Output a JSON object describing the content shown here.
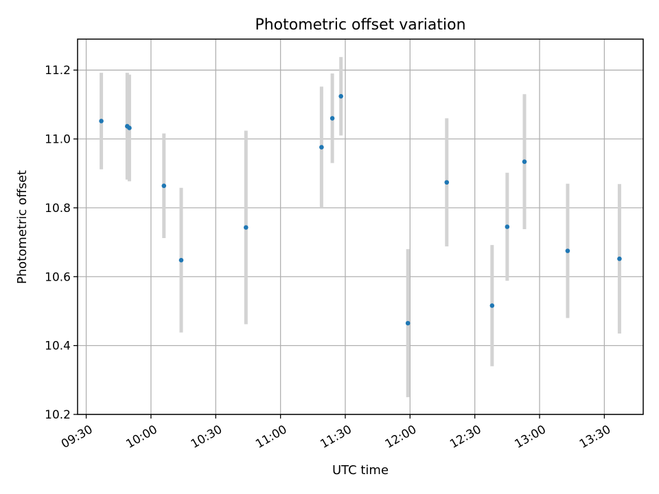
{
  "chart_data": {
    "type": "scatter",
    "title": "Photometric offset variation",
    "xlabel": "UTC time",
    "ylabel": "Photometric offset",
    "xlim": [
      "09:26",
      "13:48"
    ],
    "ylim": [
      10.2,
      11.29
    ],
    "x_ticks": [
      "09:30",
      "10:00",
      "10:30",
      "11:00",
      "11:30",
      "12:00",
      "12:30",
      "13:00",
      "13:30"
    ],
    "y_ticks": [
      "10.2",
      "10.4",
      "10.6",
      "10.8",
      "11.0",
      "11.2"
    ],
    "grid": true,
    "colors": {
      "point": "#1f77b4",
      "errorbar": "#d3d3d3"
    },
    "points": [
      {
        "x": "09:37",
        "y": 11.052,
        "err_low": 10.912,
        "err_high": 11.192
      },
      {
        "x": "09:49",
        "y": 11.037,
        "err_low": 10.882,
        "err_high": 11.192
      },
      {
        "x": "09:50",
        "y": 11.032,
        "err_low": 10.877,
        "err_high": 11.187
      },
      {
        "x": "10:06",
        "y": 10.864,
        "err_low": 10.712,
        "err_high": 11.016
      },
      {
        "x": "10:14",
        "y": 10.648,
        "err_low": 10.438,
        "err_high": 10.858
      },
      {
        "x": "10:44",
        "y": 10.743,
        "err_low": 10.462,
        "err_high": 11.024
      },
      {
        "x": "11:19",
        "y": 10.976,
        "err_low": 10.8,
        "err_high": 11.152
      },
      {
        "x": "11:24",
        "y": 11.06,
        "err_low": 10.93,
        "err_high": 11.19
      },
      {
        "x": "11:28",
        "y": 11.124,
        "err_low": 11.01,
        "err_high": 11.238
      },
      {
        "x": "11:59",
        "y": 10.465,
        "err_low": 10.25,
        "err_high": 10.68
      },
      {
        "x": "12:17",
        "y": 10.874,
        "err_low": 10.688,
        "err_high": 11.06
      },
      {
        "x": "12:38",
        "y": 10.516,
        "err_low": 10.34,
        "err_high": 10.692
      },
      {
        "x": "12:45",
        "y": 10.745,
        "err_low": 10.588,
        "err_high": 10.902
      },
      {
        "x": "12:53",
        "y": 10.934,
        "err_low": 10.738,
        "err_high": 11.13
      },
      {
        "x": "13:13",
        "y": 10.675,
        "err_low": 10.48,
        "err_high": 10.87
      },
      {
        "x": "13:37",
        "y": 10.652,
        "err_low": 10.435,
        "err_high": 10.869
      }
    ]
  }
}
